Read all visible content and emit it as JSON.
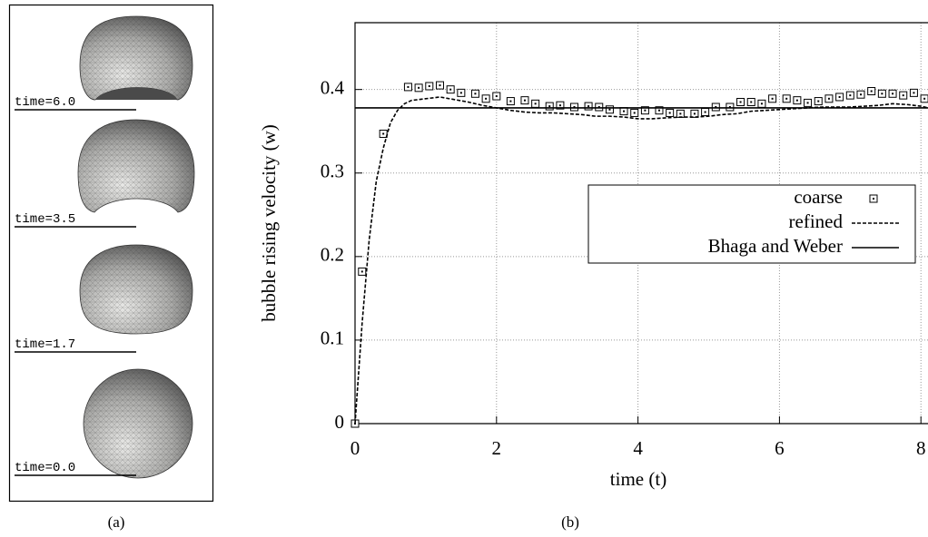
{
  "snapshots": [
    {
      "label": "time=6.0"
    },
    {
      "label": "time=3.5"
    },
    {
      "label": "time=1.7"
    },
    {
      "label": "time=0.0"
    }
  ],
  "captions": [
    "(a)",
    "(b)"
  ],
  "chart_data": {
    "type": "line",
    "x_label": "time (t)",
    "y_label": "bubble rising velocity (w)",
    "xlim": [
      0,
      8.1
    ],
    "ylim": [
      0,
      0.48
    ],
    "xticks": [
      0,
      2,
      4,
      6,
      8
    ],
    "yticks": [
      0,
      0.1,
      0.2,
      0.3,
      0.4
    ],
    "grid": true,
    "legend_position": "center right",
    "series": [
      {
        "name": "coarse",
        "color": "#000000",
        "linestyle": "none",
        "marker": "square",
        "x": [
          0,
          0.1,
          0.4,
          0.75,
          0.9,
          1.05,
          1.2,
          1.35,
          1.5,
          1.7,
          1.85,
          2.0,
          2.2,
          2.4,
          2.55,
          2.75,
          2.9,
          3.1,
          3.3,
          3.45,
          3.6,
          3.8,
          3.95,
          4.1,
          4.3,
          4.45,
          4.6,
          4.8,
          4.95,
          5.1,
          5.3,
          5.45,
          5.6,
          5.75,
          5.9,
          6.1,
          6.25,
          6.4,
          6.55,
          6.7,
          6.85,
          7.0,
          7.15,
          7.3,
          7.45,
          7.6,
          7.75,
          7.9,
          8.05
        ],
        "values": [
          0,
          0.182,
          0.347,
          0.403,
          0.402,
          0.404,
          0.405,
          0.4,
          0.396,
          0.395,
          0.389,
          0.392,
          0.386,
          0.387,
          0.383,
          0.38,
          0.381,
          0.379,
          0.38,
          0.379,
          0.376,
          0.374,
          0.372,
          0.375,
          0.375,
          0.372,
          0.371,
          0.371,
          0.373,
          0.379,
          0.379,
          0.385,
          0.385,
          0.383,
          0.389,
          0.389,
          0.387,
          0.384,
          0.386,
          0.389,
          0.391,
          0.393,
          0.394,
          0.398,
          0.395,
          0.395,
          0.393,
          0.396,
          0.389
        ]
      },
      {
        "name": "refined",
        "color": "#000000",
        "linestyle": "dashed",
        "x": [
          0,
          0.1,
          0.2,
          0.3,
          0.4,
          0.5,
          0.6,
          0.7,
          0.8,
          1.0,
          1.2,
          1.4,
          1.6,
          1.8,
          2.0,
          2.2,
          2.4,
          2.6,
          2.8,
          3.0,
          3.2,
          3.4,
          3.6,
          3.8,
          4.0,
          4.2,
          4.4,
          4.6,
          4.8,
          5.0,
          5.2,
          5.4,
          5.6,
          5.8,
          6.0,
          6.2,
          6.4,
          6.6,
          6.8,
          7.0,
          7.2,
          7.4,
          7.6,
          7.8,
          8.0,
          8.1
        ],
        "values": [
          0,
          0.12,
          0.22,
          0.29,
          0.33,
          0.36,
          0.375,
          0.383,
          0.387,
          0.389,
          0.391,
          0.388,
          0.385,
          0.381,
          0.378,
          0.375,
          0.373,
          0.372,
          0.372,
          0.371,
          0.37,
          0.368,
          0.368,
          0.367,
          0.365,
          0.365,
          0.366,
          0.367,
          0.367,
          0.368,
          0.37,
          0.371,
          0.374,
          0.375,
          0.376,
          0.377,
          0.378,
          0.379,
          0.379,
          0.379,
          0.38,
          0.381,
          0.383,
          0.382,
          0.38,
          0.378
        ]
      },
      {
        "name": "Bhaga and Weber",
        "color": "#000000",
        "linestyle": "solid",
        "x": [
          0,
          8.1
        ],
        "values": [
          0.378,
          0.378
        ]
      }
    ]
  }
}
